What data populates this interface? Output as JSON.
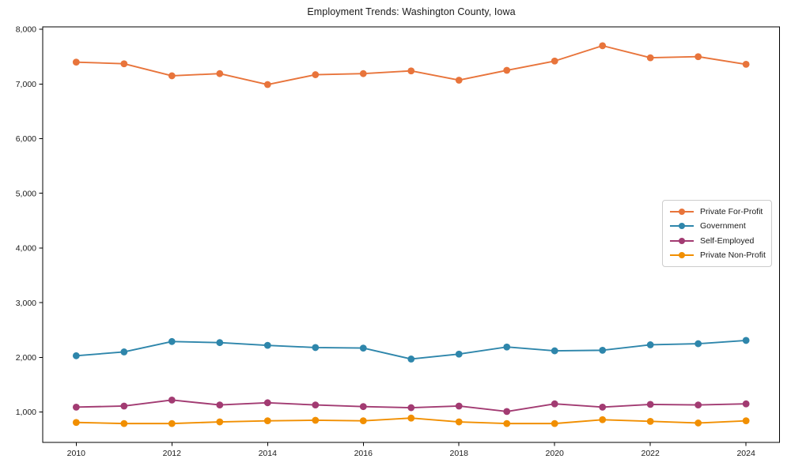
{
  "title": "Employment Trends: Washington County, Iowa",
  "chart_data": {
    "type": "line",
    "x": [
      2010,
      2011,
      2012,
      2013,
      2014,
      2015,
      2016,
      2017,
      2018,
      2019,
      2020,
      2021,
      2022,
      2023,
      2024
    ],
    "series": [
      {
        "name": "Private For-Profit",
        "color": "#E8743B",
        "values": [
          7400,
          7370,
          7150,
          7190,
          6990,
          7170,
          7190,
          7240,
          7070,
          7250,
          7420,
          7700,
          7480,
          7500,
          7360
        ]
      },
      {
        "name": "Government",
        "color": "#2E86AB",
        "values": [
          2030,
          2100,
          2290,
          2270,
          2220,
          2180,
          2170,
          1970,
          2060,
          2190,
          2120,
          2130,
          2230,
          2250,
          2310
        ]
      },
      {
        "name": "Self-Employed",
        "color": "#A23B72",
        "values": [
          1090,
          1110,
          1220,
          1130,
          1170,
          1130,
          1100,
          1080,
          1110,
          1010,
          1150,
          1090,
          1140,
          1130,
          1150
        ]
      },
      {
        "name": "Private Non-Profit",
        "color": "#F18F01",
        "values": [
          810,
          790,
          790,
          820,
          840,
          850,
          840,
          890,
          820,
          790,
          790,
          860,
          830,
          800,
          840
        ]
      }
    ],
    "xlabel": "",
    "ylabel": "",
    "xticks": [
      2010,
      2012,
      2014,
      2016,
      2018,
      2020,
      2022,
      2024
    ],
    "yticks": [
      1000,
      2000,
      3000,
      4000,
      5000,
      6000,
      7000,
      8000
    ],
    "xlim": [
      2009.3,
      2024.7
    ],
    "ylim": [
      445,
      8045
    ],
    "grid": false,
    "legend_position": "center right",
    "axis_color": "#000000",
    "background": "#ffffff"
  }
}
